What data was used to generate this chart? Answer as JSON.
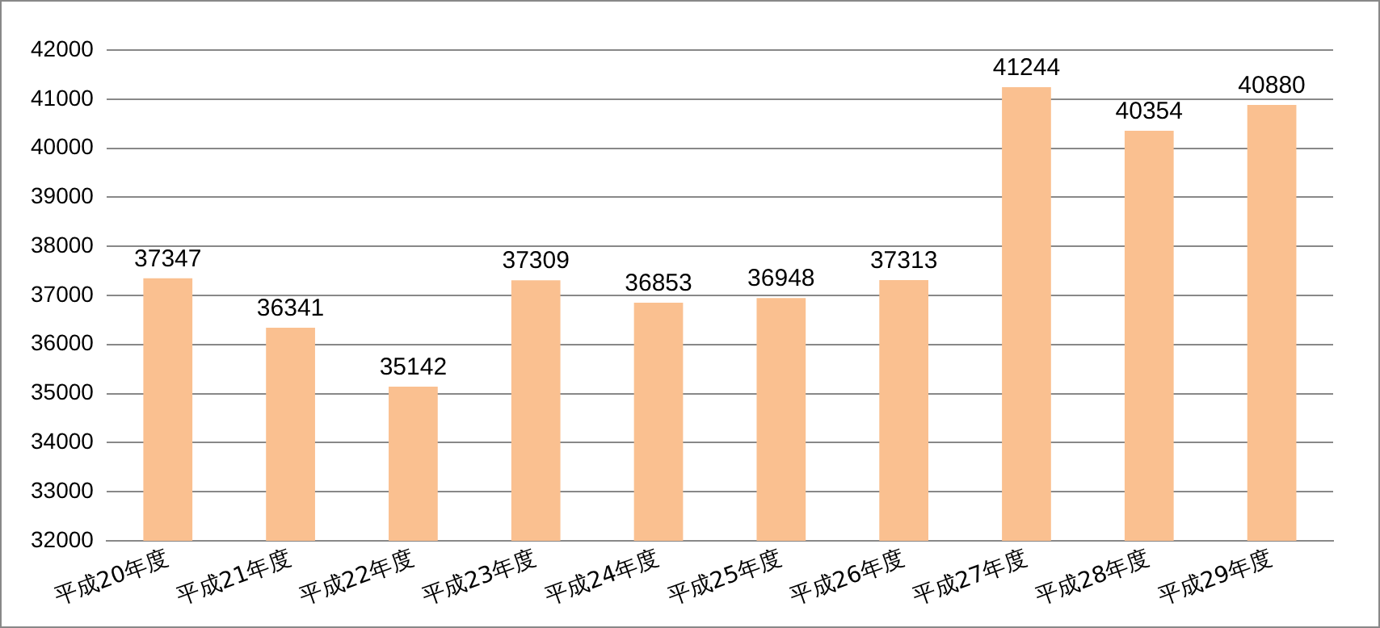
{
  "chart_data": {
    "type": "bar",
    "categories": [
      "平成20年度",
      "平成21年度",
      "平成22年度",
      "平成23年度",
      "平成24年度",
      "平成25年度",
      "平成26年度",
      "平成27年度",
      "平成28年度",
      "平成29年度"
    ],
    "values": [
      37347,
      36341,
      35142,
      37309,
      36853,
      36948,
      37313,
      41244,
      40354,
      40880
    ],
    "color": "#fac090",
    "ylim": [
      32000,
      42000
    ],
    "yticks": [
      32000,
      33000,
      34000,
      35000,
      36000,
      37000,
      38000,
      39000,
      40000,
      41000,
      42000
    ],
    "grid": "y",
    "data_labels": true,
    "legend": false
  }
}
